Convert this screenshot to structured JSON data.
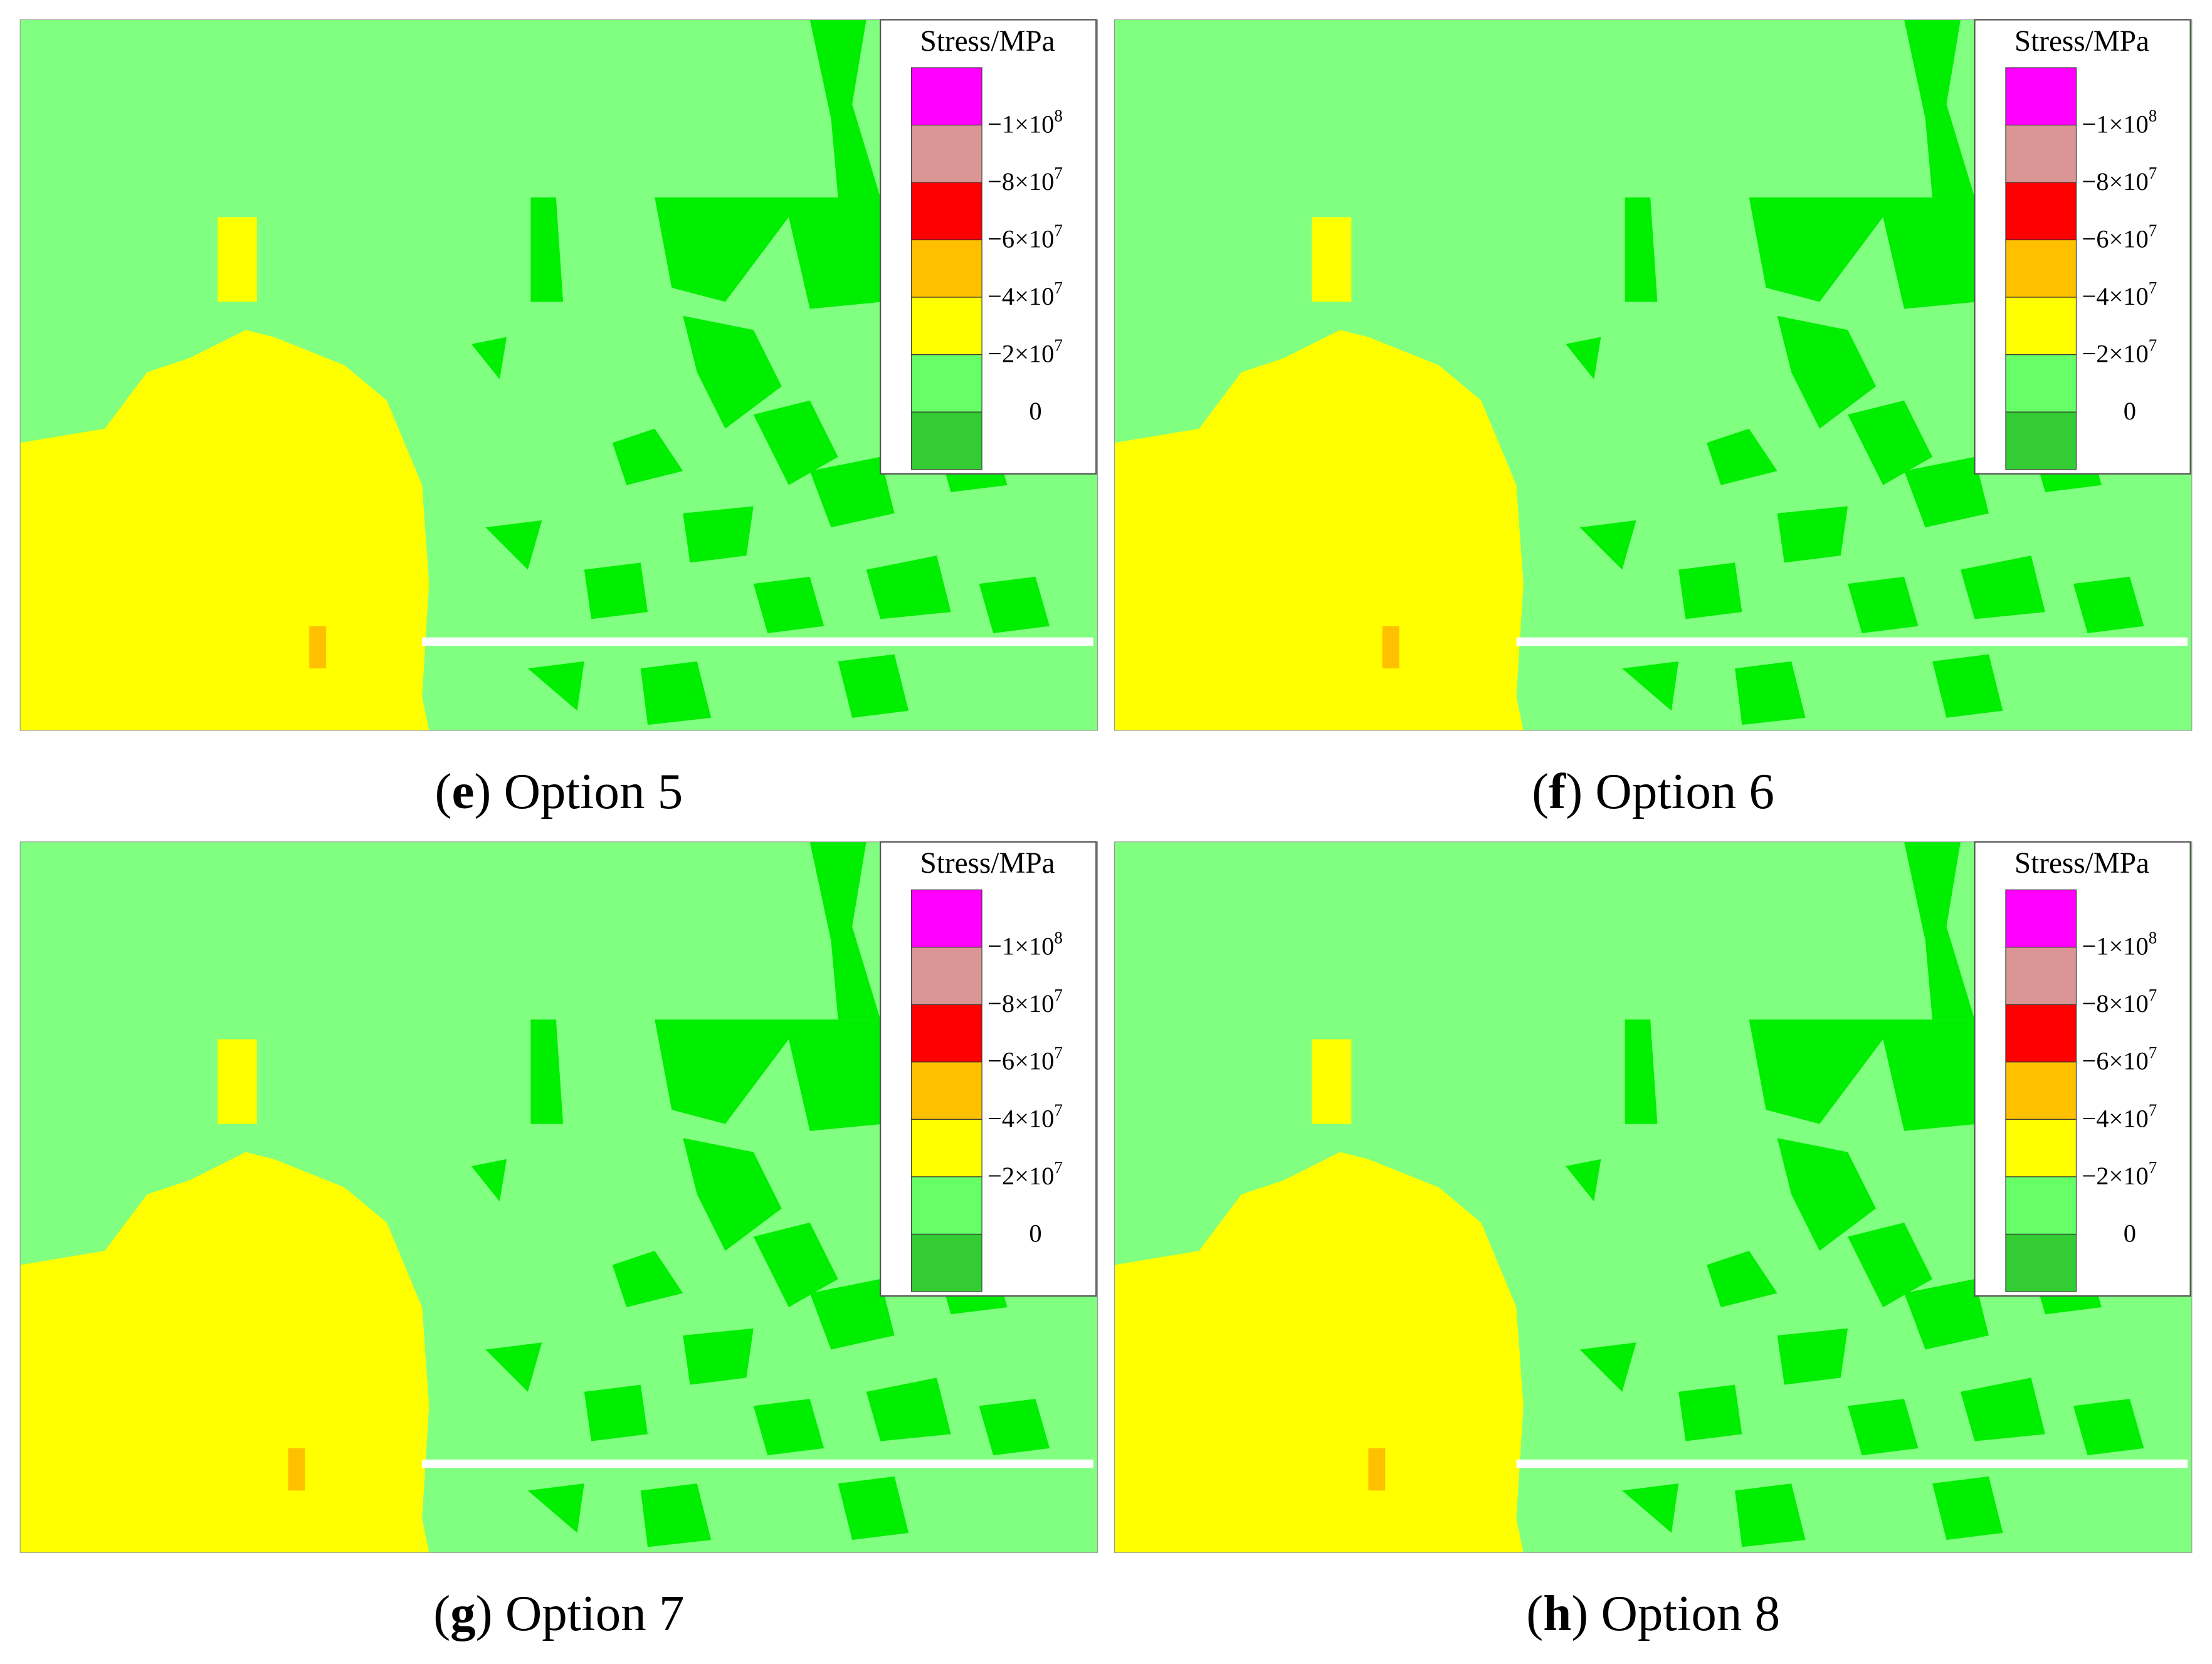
{
  "legend": {
    "title": "Stress/MPa",
    "colors": [
      "#ff00ff",
      "#d99694",
      "#ff0000",
      "#ffc000",
      "#ffff00",
      "#66ff66",
      "#33cc33"
    ],
    "labels": [
      {
        "base": "−1×10",
        "exp": "8"
      },
      {
        "base": "−8×10",
        "exp": "7"
      },
      {
        "base": "−6×10",
        "exp": "7"
      },
      {
        "base": "−4×10",
        "exp": "7"
      },
      {
        "base": "−2×10",
        "exp": "7"
      },
      {
        "base": "0",
        "exp": ""
      }
    ]
  },
  "panels": [
    {
      "prefix": "(",
      "letter": "e",
      "suffix": ") Option 5"
    },
    {
      "prefix": "(",
      "letter": "f",
      "suffix": ") Option 6"
    },
    {
      "prefix": "(",
      "letter": "g",
      "suffix": ") Option 7"
    },
    {
      "prefix": "(",
      "letter": "h",
      "suffix": ") Option 8"
    }
  ]
}
